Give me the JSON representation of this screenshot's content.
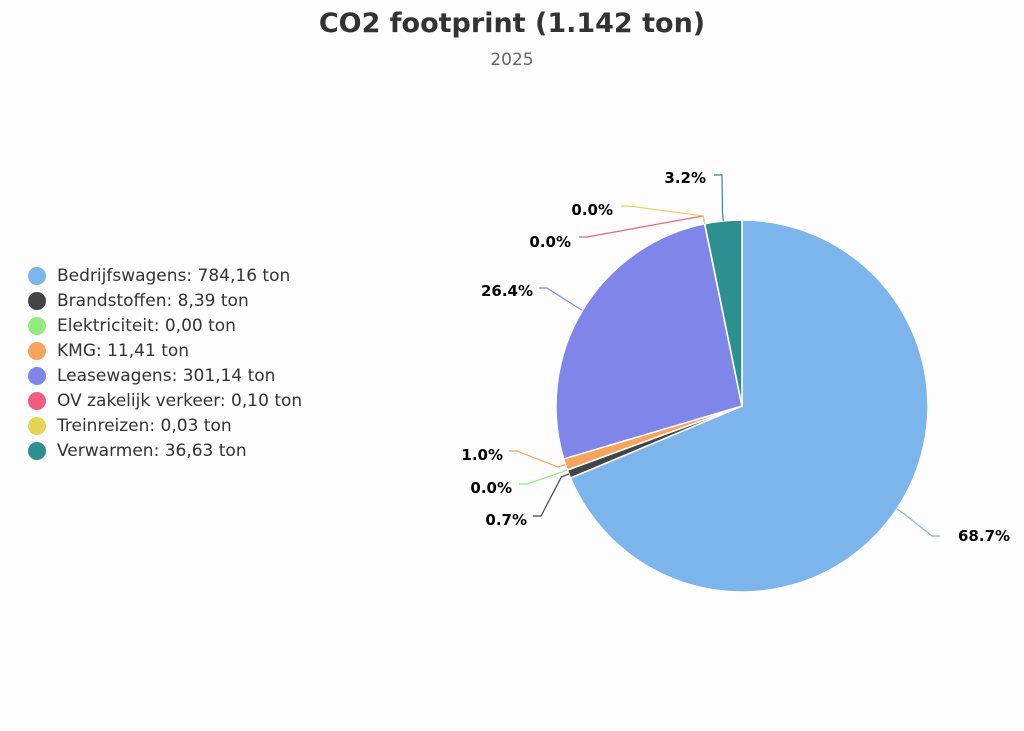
{
  "chart_data": {
    "type": "pie",
    "title": "CO2 footprint (1.142 ton)",
    "subtitle": "2025",
    "legend_position": "left",
    "unit": "ton",
    "slices": [
      {
        "name": "Bedrijfswagens",
        "value": 784.16,
        "legend_label": "Bedrijfswagens: 784,16 ton",
        "percent_label": "68.7%",
        "color": "#7cb5ec"
      },
      {
        "name": "Brandstoffen",
        "value": 8.39,
        "legend_label": "Brandstoffen: 8,39 ton",
        "percent_label": "0.7%",
        "color": "#434348"
      },
      {
        "name": "Elektriciteit",
        "value": 0.0,
        "legend_label": "Elektriciteit: 0,00 ton",
        "percent_label": "0.0%",
        "color": "#90ed7d"
      },
      {
        "name": "KMG",
        "value": 11.41,
        "legend_label": "KMG: 11,41 ton",
        "percent_label": "1.0%",
        "color": "#f7a35c"
      },
      {
        "name": "Leasewagens",
        "value": 301.14,
        "legend_label": "Leasewagens: 301,14 ton",
        "percent_label": "26.4%",
        "color": "#8085e9"
      },
      {
        "name": "OV zakelijk verkeer",
        "value": 0.1,
        "legend_label": "OV zakelijk verkeer: 0,10 ton",
        "percent_label": "0.0%",
        "color": "#f15c80"
      },
      {
        "name": "Treinreizen",
        "value": 0.03,
        "legend_label": "Treinreizen: 0,03 ton",
        "percent_label": "0.0%",
        "color": "#e4d354"
      },
      {
        "name": "Verwarmen",
        "value": 36.63,
        "legend_label": "Verwarmen: 36,63 ton",
        "percent_label": "3.2%",
        "color": "#2b908f"
      }
    ]
  }
}
